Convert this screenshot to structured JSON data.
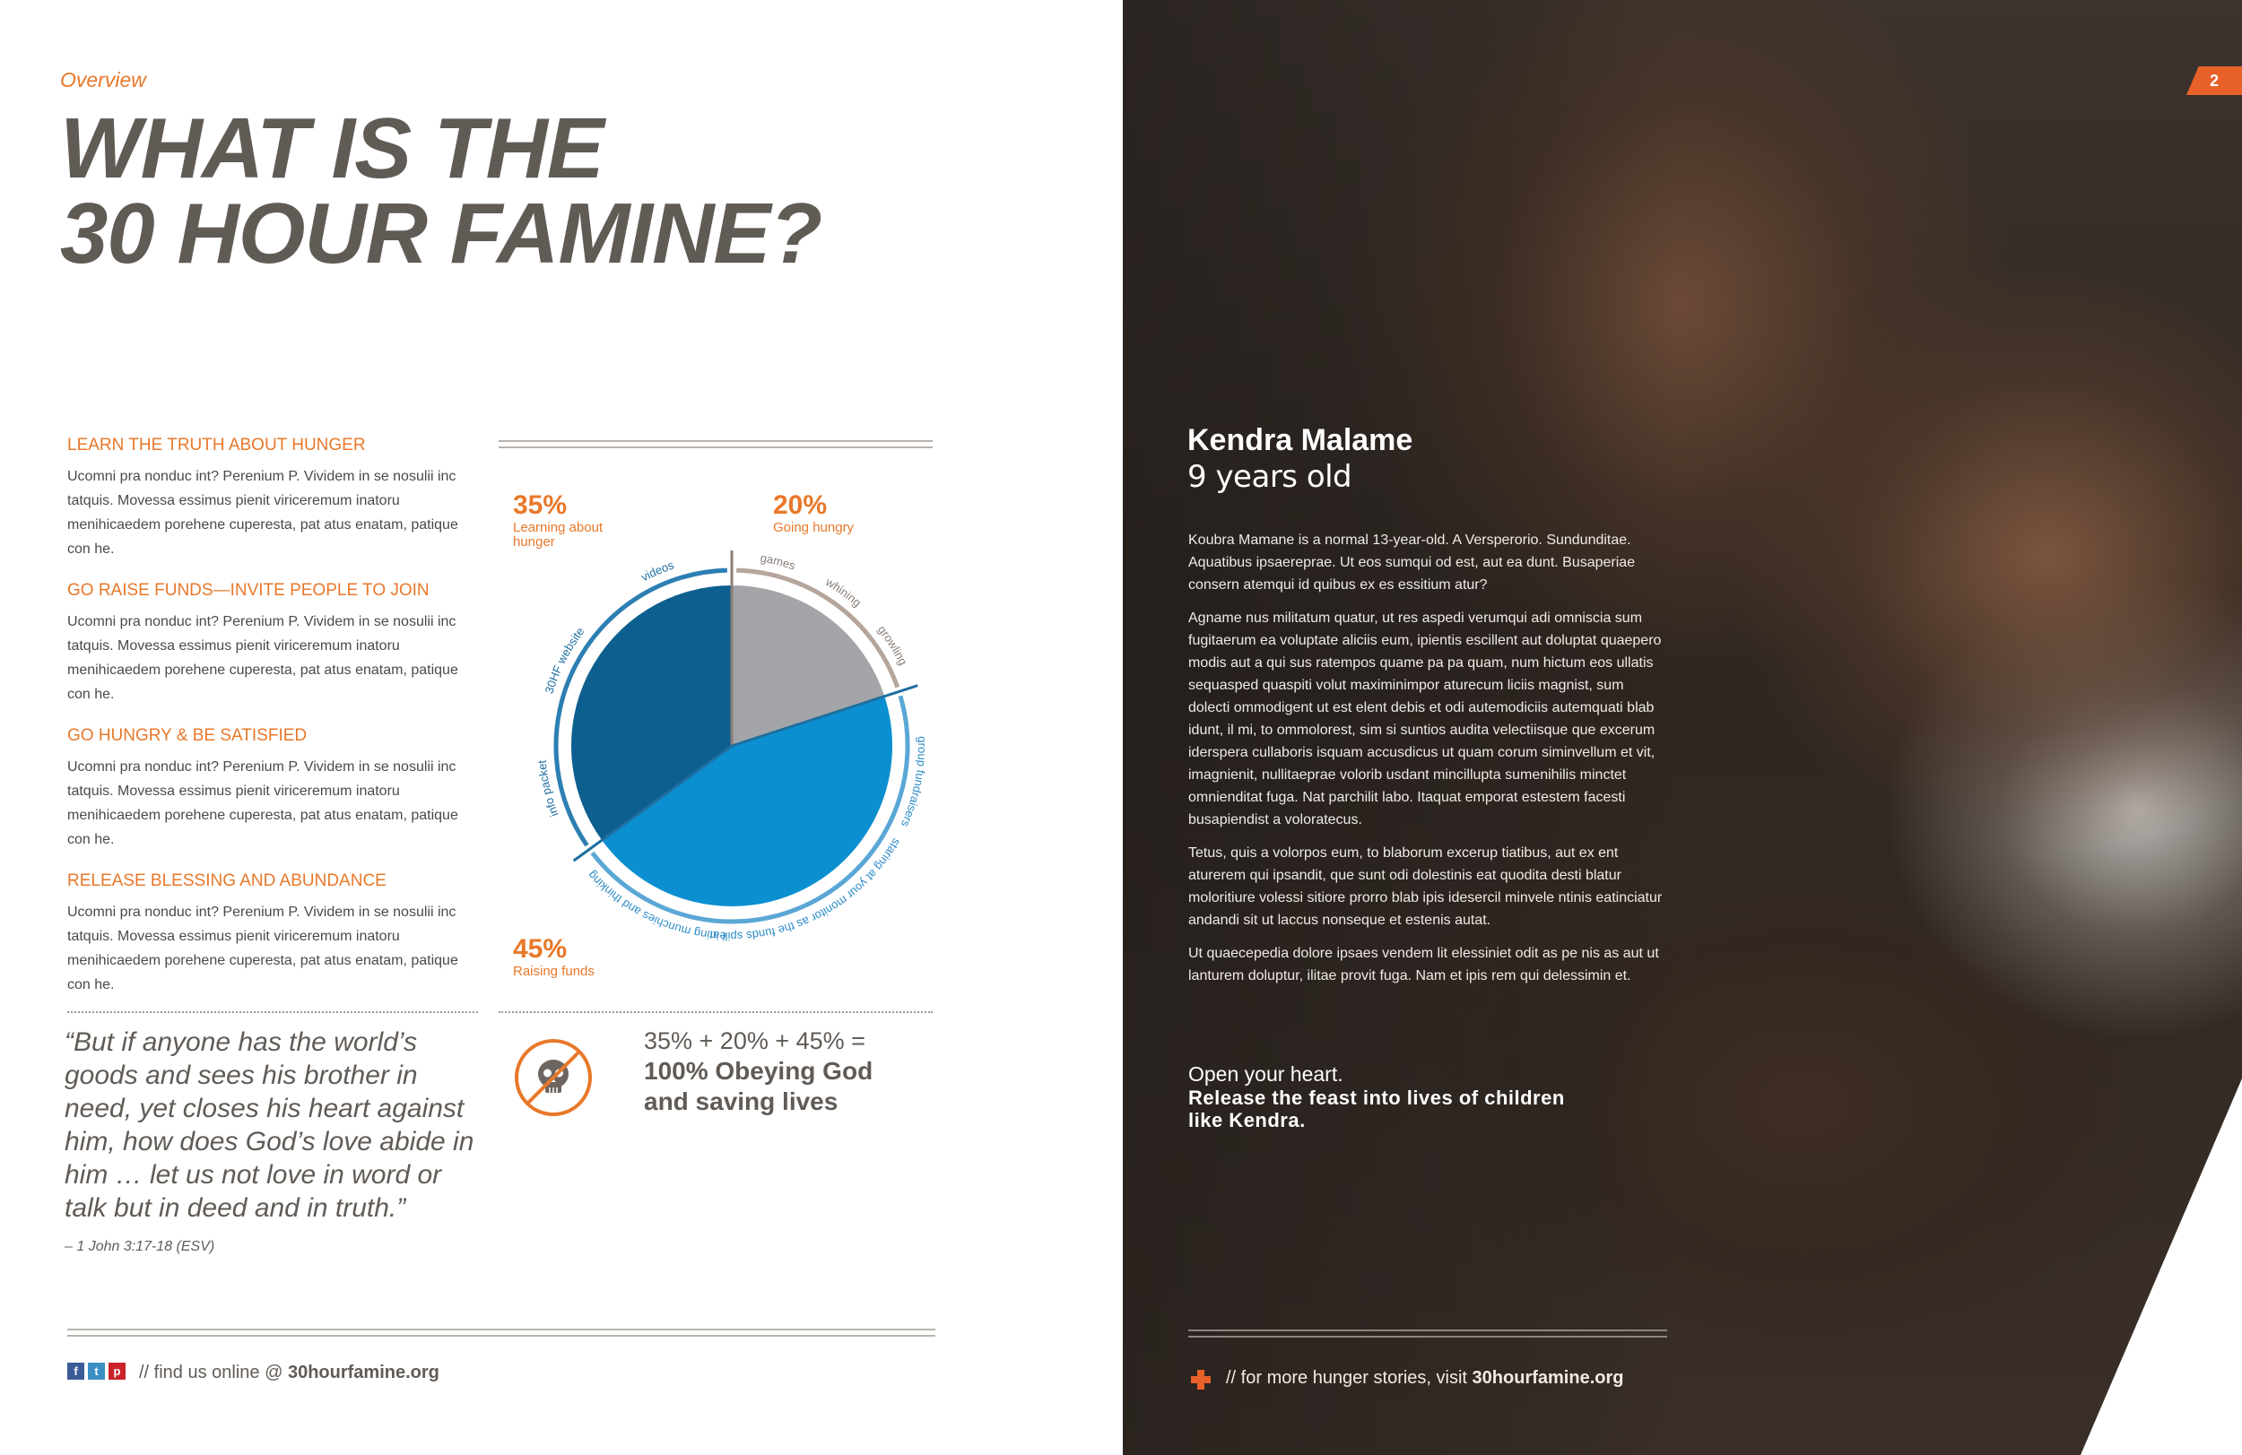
{
  "left": {
    "section_label": "Overview",
    "headline_line1": "WHAT IS THE",
    "headline_line2": "30 HOUR FAMINE?",
    "items": [
      {
        "heading": "LEARN THE TRUTH ABOUT HUNGER",
        "body": "Ucomni pra nonduc int? Perenium P. Vividem in se nosulii inc tatquis. Movessa essimus pienit viriceremum inatoru menihicaedem porehene cuperesta, pat atus enatam, patique con he."
      },
      {
        "heading": "GO RAISE FUNDS—INVITE PEOPLE TO JOIN",
        "body": "Ucomni pra nonduc int? Perenium P. Vividem in se nosulii inc tatquis. Movessa essimus pienit viriceremum inatoru menihicaedem porehene cuperesta, pat atus enatam, patique con he."
      },
      {
        "heading": "GO HUNGRY & BE SATISFIED",
        "body": "Ucomni pra nonduc int? Perenium P. Vividem in se nosulii inc tatquis. Movessa essimus pienit viriceremum inatoru menihicaedem porehene cuperesta, pat atus enatam, patique con he."
      },
      {
        "heading": "RELEASE BLESSING AND ABUNDANCE",
        "body": "Ucomni pra nonduc int? Perenium P. Vividem in se nosulii inc tatquis. Movessa essimus pienit viriceremum inatoru menihicaedem porehene cuperesta, pat atus enatam, patique con he."
      }
    ],
    "quote": "“But if anyone has the world’s goods and sees his brother in need, yet closes his heart against him, how does God’s love abide in him … let us not love in word or talk but in deed and in truth.”",
    "quote_cite": "– 1 John 3:17-18 (ESV)",
    "formula_line1": "35% + 20% + 45% =",
    "formula_line2": "100% Obeying God",
    "formula_line3": "and saving lives",
    "footer_prefix": "// find us online @",
    "footer_site": "30hourfamine.org",
    "social": [
      "f",
      "t",
      "p"
    ]
  },
  "chart_data": {
    "type": "pie",
    "categories": [
      "Going hungry",
      "Raising funds",
      "Learning about hunger"
    ],
    "values": [
      20,
      45,
      35
    ],
    "percent_labels": [
      "20%",
      "45%",
      "35%"
    ],
    "colors": [
      "#a3a5a8",
      "#0c8fd0",
      "#0d5f8f"
    ],
    "ring_labels": {
      "going_hungry": [
        "games",
        "whining",
        "growling"
      ],
      "raising_funds": [
        "group fundraisers",
        "staring at your monitor as the funds spill in",
        "eating munchies and thinking"
      ],
      "learning": [
        "info packet",
        "30HF website",
        "videos"
      ]
    }
  },
  "right": {
    "page_number": "2",
    "name": "Kendra Malame",
    "age": "9 years old",
    "paragraphs": [
      "Koubra Mamane is a normal 13-year-old. A Versperorio. Sundunditae. Aquatibus ipsaereprae. Ut eos sumqui od est, aut ea dunt. Busaperiae consern atemqui id quibus ex es essitium atur?",
      "Agname nus militatum quatur, ut res aspedi verumqui adi omniscia sum fugitaerum ea voluptate aliciis eum, ipientis escillent aut doluptat quaepero modis aut a qui sus ratempos quame pa pa quam, num hictum eos ullatis sequasped quaspiti volut maximinimpor aturecum liciis magnist, sum dolecti ommodigent ut est elent debis et odi autemodiciis autemquati blab idunt, il mi, to ommolorest, sim si suntios audita velectiisque que excerum iderspera cullaboris isquam accusdicus ut quam corum siminvellum et vit, imagnienit, nullitaeprae volorib usdant mincillupta sumenihilis minctet omnienditat fuga. Nat parchilit labo. Itaquat emporat estestem facesti busapiendist a voloratecus.",
      "Tetus, quis a volorpos eum, to blaborum excerup tiatibus, aut ex ent aturerem qui ipsandit, que sunt odi dolestinis eat quodita desti blatur moloritiure volessi sitiore prorro blab ipis idesercil minvele ntinis eatinciatur andandi sit ut laccus nonseque et estenis autat.",
      "Ut quaecepedia dolore ipsaes vendem lit elessiniet odit as pe nis as aut ut lanturem doluptur, ilitae provit fuga. Nam et ipis rem qui delessimin et."
    ],
    "cta_line1": "Open your heart.",
    "cta_line2": "Release the feast into lives of children like Kendra.",
    "footer_prefix": "// for more hunger stories, visit",
    "footer_site": "30hourfamine.org"
  }
}
